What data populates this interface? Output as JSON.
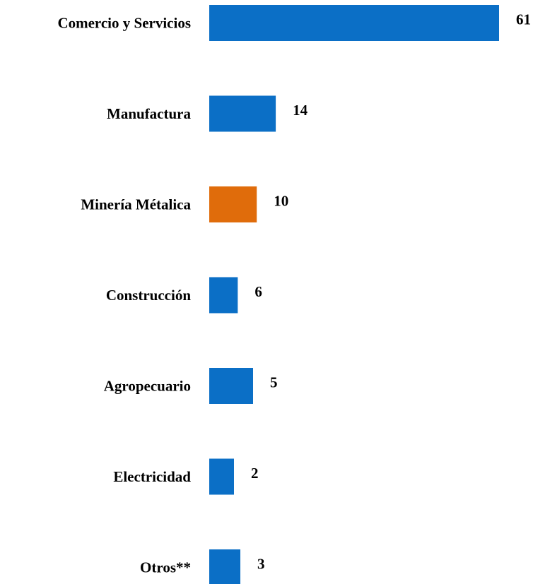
{
  "chart_data": {
    "type": "bar",
    "orientation": "horizontal",
    "title": "",
    "xlabel": "",
    "ylabel": "",
    "categories": [
      "Comercio y Servicios",
      "Manufactura",
      "Minería Métalica",
      "Construcción",
      "Agropecuario",
      "Electricidad",
      "Otros**"
    ],
    "values": [
      61,
      14,
      10,
      6,
      5,
      2,
      3
    ],
    "value_labels": [
      "61",
      "14",
      "10",
      "6",
      "5",
      "2",
      "3"
    ],
    "bar_colors": [
      "#0b6fc6",
      "#0b6fc6",
      "#e06c0b",
      "#0b6fc6",
      "#0b6fc6",
      "#0b6fc6",
      "#0b6fc6"
    ],
    "grid": false,
    "legend": "none"
  }
}
